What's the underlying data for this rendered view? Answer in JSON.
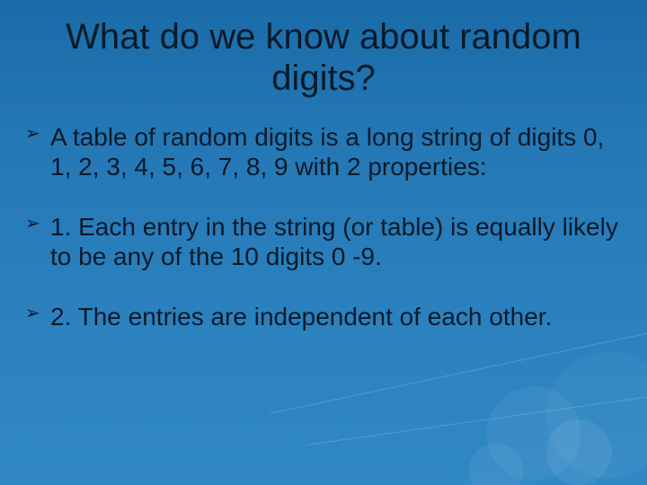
{
  "slide": {
    "title": "What do we know about random digits?",
    "title_fontsize": 40,
    "title_color": "#0a1a2a",
    "body_fontsize": 28,
    "body_color": "#0a1a2a",
    "background_gradient": [
      "#1a6ca8",
      "#2478b5",
      "#2a80bd",
      "#3088c5"
    ],
    "bullet_marker": "➢",
    "bullets": [
      "A table of random digits is a long string of digits 0, 1, 2, 3, 4, 5, 6, 7, 8, 9 with 2 properties:",
      "1. Each entry in the string (or table) is equally likely to be any of the 10 digits 0 -9.",
      "2. The entries are independent of each other."
    ]
  }
}
